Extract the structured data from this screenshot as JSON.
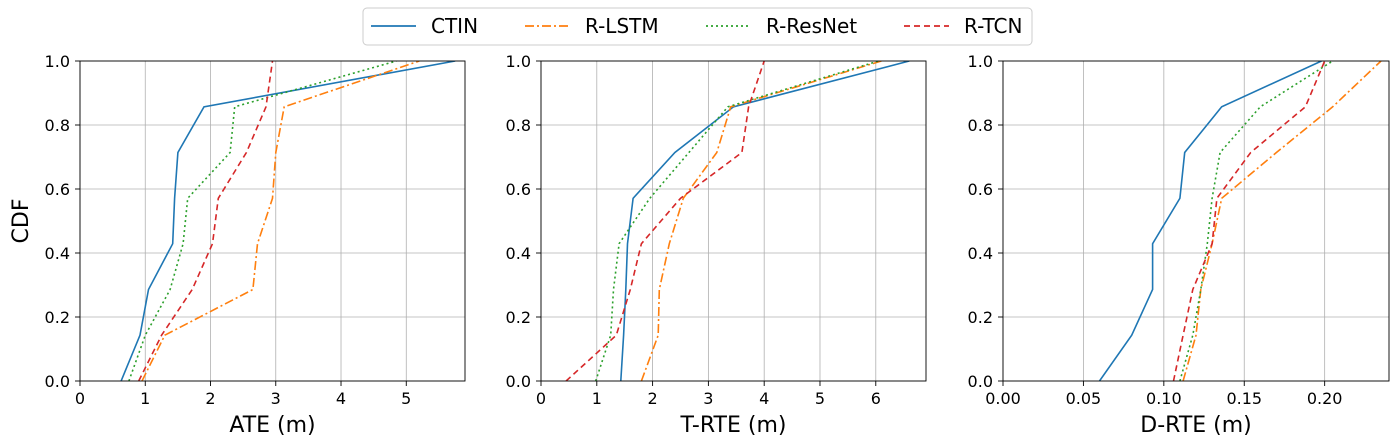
{
  "legend": {
    "placement": "top-center",
    "entries": [
      {
        "name": "CTIN",
        "color": "#1f77b4",
        "dash": "solid"
      },
      {
        "name": "R-LSTM",
        "color": "#ff7f0e",
        "dash": "dashdot"
      },
      {
        "name": "R-ResNet",
        "color": "#2ca02c",
        "dash": "dotted"
      },
      {
        "name": "R-TCN",
        "color": "#d62728",
        "dash": "dashed"
      }
    ]
  },
  "chart_data": [
    {
      "type": "line",
      "xlabel": "ATE (m)",
      "ylabel": "CDF",
      "xlim": [
        0,
        5.9
      ],
      "ylim": [
        0,
        1.0
      ],
      "xticks": [
        0,
        1,
        2,
        3,
        4,
        5
      ],
      "xtick_labels": [
        "0",
        "1",
        "2",
        "3",
        "4",
        "5"
      ],
      "yticks": [
        0.0,
        0.2,
        0.4,
        0.6,
        0.8,
        1.0
      ],
      "ytick_labels": [
        "0.0",
        "0.2",
        "0.4",
        "0.6",
        "0.8",
        "1.0"
      ],
      "grid": true,
      "series": [
        {
          "name": "CTIN",
          "points": [
            [
              0.63,
              0
            ],
            [
              0.92,
              0.143
            ],
            [
              1.05,
              0.286
            ],
            [
              1.42,
              0.429
            ],
            [
              1.45,
              0.571
            ],
            [
              1.5,
              0.714
            ],
            [
              1.9,
              0.857
            ],
            [
              5.75,
              1.0
            ]
          ]
        },
        {
          "name": "R-LSTM",
          "points": [
            [
              0.95,
              0
            ],
            [
              1.3,
              0.143
            ],
            [
              2.65,
              0.286
            ],
            [
              2.72,
              0.429
            ],
            [
              2.95,
              0.571
            ],
            [
              3.0,
              0.714
            ],
            [
              3.13,
              0.857
            ],
            [
              5.2,
              1.0
            ]
          ]
        },
        {
          "name": "R-ResNet",
          "points": [
            [
              0.75,
              0
            ],
            [
              1.0,
              0.143
            ],
            [
              1.38,
              0.286
            ],
            [
              1.58,
              0.429
            ],
            [
              1.65,
              0.571
            ],
            [
              2.3,
              0.714
            ],
            [
              2.37,
              0.857
            ],
            [
              4.85,
              1.0
            ]
          ]
        },
        {
          "name": "R-TCN",
          "points": [
            [
              0.9,
              0
            ],
            [
              1.25,
              0.143
            ],
            [
              1.72,
              0.286
            ],
            [
              2.03,
              0.429
            ],
            [
              2.12,
              0.571
            ],
            [
              2.55,
              0.714
            ],
            [
              2.85,
              0.857
            ],
            [
              2.95,
              1.0
            ]
          ]
        }
      ]
    },
    {
      "type": "line",
      "xlabel": "T-RTE (m)",
      "ylabel": "",
      "xlim": [
        0,
        6.9
      ],
      "ylim": [
        0,
        1.0
      ],
      "xticks": [
        0,
        1,
        2,
        3,
        4,
        5,
        6
      ],
      "xtick_labels": [
        "0",
        "1",
        "2",
        "3",
        "4",
        "5",
        "6"
      ],
      "yticks": [
        0.0,
        0.2,
        0.4,
        0.6,
        0.8,
        1.0
      ],
      "ytick_labels": [
        "0.0",
        "0.2",
        "0.4",
        "0.6",
        "0.8",
        "1.0"
      ],
      "grid": true,
      "series": [
        {
          "name": "CTIN",
          "points": [
            [
              1.43,
              0
            ],
            [
              1.48,
              0.143
            ],
            [
              1.52,
              0.286
            ],
            [
              1.55,
              0.429
            ],
            [
              1.65,
              0.571
            ],
            [
              2.4,
              0.714
            ],
            [
              3.45,
              0.857
            ],
            [
              6.6,
              1.0
            ]
          ]
        },
        {
          "name": "R-LSTM",
          "points": [
            [
              1.8,
              0
            ],
            [
              2.1,
              0.143
            ],
            [
              2.12,
              0.286
            ],
            [
              2.3,
              0.429
            ],
            [
              2.55,
              0.571
            ],
            [
              3.15,
              0.714
            ],
            [
              3.4,
              0.857
            ],
            [
              6.1,
              1.0
            ]
          ]
        },
        {
          "name": "R-ResNet",
          "points": [
            [
              0.98,
              0
            ],
            [
              1.25,
              0.143
            ],
            [
              1.3,
              0.286
            ],
            [
              1.4,
              0.429
            ],
            [
              1.95,
              0.571
            ],
            [
              2.65,
              0.714
            ],
            [
              3.35,
              0.857
            ],
            [
              6.05,
              1.0
            ]
          ]
        },
        {
          "name": "R-TCN",
          "points": [
            [
              0.45,
              0
            ],
            [
              1.35,
              0.143
            ],
            [
              1.6,
              0.286
            ],
            [
              1.8,
              0.429
            ],
            [
              2.5,
              0.571
            ],
            [
              3.6,
              0.714
            ],
            [
              3.72,
              0.857
            ],
            [
              4.0,
              1.0
            ]
          ]
        }
      ]
    },
    {
      "type": "line",
      "xlabel": "D-RTE (m)",
      "ylabel": "",
      "xlim": [
        0,
        0.24
      ],
      "ylim": [
        0,
        1.0
      ],
      "xticks": [
        0,
        0.05,
        0.1,
        0.15,
        0.2
      ],
      "xtick_labels": [
        "0.00",
        "0.05",
        "0.10",
        "0.15",
        "0.20"
      ],
      "yticks": [
        0.0,
        0.2,
        0.4,
        0.6,
        0.8,
        1.0
      ],
      "ytick_labels": [
        "0.0",
        "0.2",
        "0.4",
        "0.6",
        "0.8",
        "1.0"
      ],
      "grid": true,
      "series": [
        {
          "name": "CTIN",
          "points": [
            [
              0.06,
              0
            ],
            [
              0.08,
              0.143
            ],
            [
              0.093,
              0.286
            ],
            [
              0.093,
              0.429
            ],
            [
              0.11,
              0.571
            ],
            [
              0.113,
              0.714
            ],
            [
              0.136,
              0.857
            ],
            [
              0.198,
              1.0
            ]
          ]
        },
        {
          "name": "R-LSTM",
          "points": [
            [
              0.112,
              0
            ],
            [
              0.12,
              0.143
            ],
            [
              0.123,
              0.286
            ],
            [
              0.13,
              0.429
            ],
            [
              0.136,
              0.571
            ],
            [
              0.17,
              0.714
            ],
            [
              0.205,
              0.857
            ],
            [
              0.235,
              1.0
            ]
          ]
        },
        {
          "name": "R-ResNet",
          "points": [
            [
              0.11,
              0
            ],
            [
              0.118,
              0.143
            ],
            [
              0.123,
              0.286
            ],
            [
              0.127,
              0.429
            ],
            [
              0.13,
              0.571
            ],
            [
              0.135,
              0.714
            ],
            [
              0.16,
              0.857
            ],
            [
              0.205,
              1.0
            ]
          ]
        },
        {
          "name": "R-TCN",
          "points": [
            [
              0.106,
              0
            ],
            [
              0.112,
              0.143
            ],
            [
              0.118,
              0.286
            ],
            [
              0.13,
              0.429
            ],
            [
              0.133,
              0.571
            ],
            [
              0.154,
              0.714
            ],
            [
              0.188,
              0.857
            ],
            [
              0.2,
              1.0
            ]
          ]
        }
      ]
    }
  ]
}
